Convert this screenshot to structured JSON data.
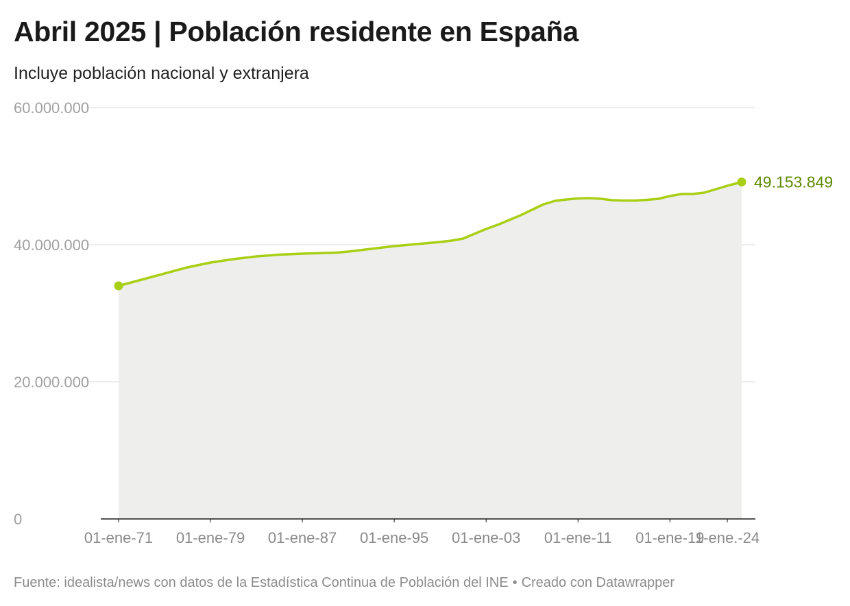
{
  "header": {
    "title": "Abril 2025 | Población residente en España",
    "subtitle": "Incluye población nacional y extranjera"
  },
  "footer": {
    "source": "Fuente: idealista/news con datos de la Estadística Continua de Población del INE",
    "separator": "•",
    "credit": "Creado con Datawrapper"
  },
  "colors": {
    "line": "#a9cf14",
    "label": "#5e8a00",
    "area": "#eeeeec",
    "grid": "#dddddd",
    "axis": "#1a1a1a",
    "tick_text": "#a0a0a0"
  },
  "chart_data": {
    "type": "area",
    "title": "Abril 2025 | Población residente en España",
    "subtitle": "Incluye población nacional y extranjera",
    "xlabel": "",
    "ylabel": "",
    "ylim": [
      0,
      60000000
    ],
    "xlim": [
      1971.0,
      2025.25
    ],
    "grid": true,
    "y_ticks": [
      {
        "value": 0,
        "label": "0"
      },
      {
        "value": 20000000,
        "label": "20.000.000"
      },
      {
        "value": 40000000,
        "label": "40.000.000"
      },
      {
        "value": 60000000,
        "label": "60.000.000"
      }
    ],
    "x_ticks": [
      {
        "value": 1971,
        "label": "01-ene-71"
      },
      {
        "value": 1979,
        "label": "01-ene-79"
      },
      {
        "value": 1987,
        "label": "01-ene-87"
      },
      {
        "value": 1995,
        "label": "01-ene-95"
      },
      {
        "value": 2003,
        "label": "01-ene-03"
      },
      {
        "value": 2011,
        "label": "01-ene-11"
      },
      {
        "value": 2019,
        "label": "01-ene-19"
      },
      {
        "value": 2024,
        "label": "1-ene.-24"
      }
    ],
    "series": [
      {
        "points": [
          [
            1971,
            34000000
          ],
          [
            1973,
            34900000
          ],
          [
            1975,
            35800000
          ],
          [
            1977,
            36700000
          ],
          [
            1979,
            37400000
          ],
          [
            1981,
            37900000
          ],
          [
            1983,
            38300000
          ],
          [
            1985,
            38550000
          ],
          [
            1987,
            38700000
          ],
          [
            1989,
            38800000
          ],
          [
            1990,
            38850000
          ],
          [
            1991,
            39000000
          ],
          [
            1993,
            39400000
          ],
          [
            1995,
            39800000
          ],
          [
            1997,
            40100000
          ],
          [
            1999,
            40400000
          ],
          [
            2000,
            40600000
          ],
          [
            2001,
            40900000
          ],
          [
            2002,
            41600000
          ],
          [
            2003,
            42300000
          ],
          [
            2004,
            42900000
          ],
          [
            2005,
            43600000
          ],
          [
            2006,
            44300000
          ],
          [
            2007,
            45100000
          ],
          [
            2008,
            45900000
          ],
          [
            2009,
            46400000
          ],
          [
            2010,
            46600000
          ],
          [
            2011,
            46750000
          ],
          [
            2012,
            46800000
          ],
          [
            2013,
            46700000
          ],
          [
            2014,
            46500000
          ],
          [
            2015,
            46450000
          ],
          [
            2016,
            46450000
          ],
          [
            2017,
            46550000
          ],
          [
            2018,
            46700000
          ],
          [
            2019,
            47100000
          ],
          [
            2020,
            47400000
          ],
          [
            2021,
            47400000
          ],
          [
            2022,
            47600000
          ],
          [
            2023,
            48100000
          ],
          [
            2024,
            48600000
          ],
          [
            2025.25,
            49153849
          ]
        ]
      }
    ],
    "end_label": "49.153.849",
    "start_marker": true,
    "end_marker": true
  }
}
